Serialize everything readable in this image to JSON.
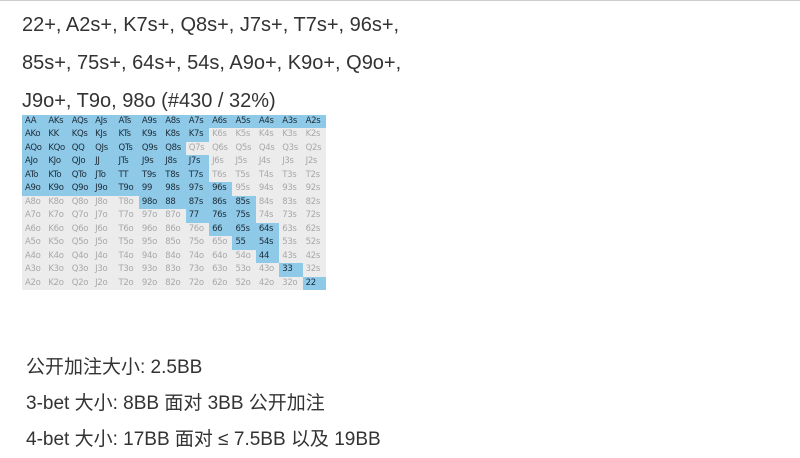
{
  "range_text": {
    "lines": [
      "22+, A2s+, K7s+, Q8s+, J7s+, T7s+, 96s+,",
      "85s+, 75s+, 64s+, 54s, A9o+, K9o+, Q9o+,",
      "J9o+, T9o, 98o (#430 / 32%)"
    ]
  },
  "grid": {
    "ranks": [
      "A",
      "K",
      "Q",
      "J",
      "T",
      "9",
      "8",
      "7",
      "6",
      "5",
      "4",
      "3",
      "2"
    ],
    "selected_color": "#8ec9e8",
    "unselected_color": "#ececec",
    "selected": [
      "22+",
      "A2s+",
      "K7s+",
      "Q8s+",
      "J7s+",
      "T7s+",
      "96s+",
      "85s+",
      "75s+",
      "64s+",
      "54s",
      "A9o+",
      "K9o+",
      "Q9o+",
      "J9o+",
      "T9o",
      "98o"
    ],
    "selected_cells": [
      "AA",
      "AKs",
      "AQs",
      "AJs",
      "ATs",
      "A9s",
      "A8s",
      "A7s",
      "A6s",
      "A5s",
      "A4s",
      "A3s",
      "A2s",
      "AKo",
      "KK",
      "KQs",
      "KJs",
      "KTs",
      "K9s",
      "K8s",
      "K7s",
      "AQo",
      "KQo",
      "QQ",
      "QJs",
      "QTs",
      "Q9s",
      "Q8s",
      "AJo",
      "KJo",
      "QJo",
      "JJ",
      "JTs",
      "J9s",
      "J8s",
      "J7s",
      "ATo",
      "KTo",
      "QTo",
      "JTo",
      "TT",
      "T9s",
      "T8s",
      "T7s",
      "A9o",
      "K9o",
      "Q9o",
      "J9o",
      "T9o",
      "99",
      "98s",
      "97s",
      "96s",
      "98o",
      "88",
      "87s",
      "86s",
      "85s",
      "77",
      "76s",
      "75s",
      "66",
      "65s",
      "64s",
      "55",
      "54s",
      "44",
      "33",
      "22"
    ]
  },
  "sizes": {
    "lines": [
      "公开加注大小:  2.5BB",
      "3-bet 大小: 8BB 面对 3BB 公开加注",
      "4-bet 大小: 17BB 面对 ≤ 7.5BB 以及 19BB"
    ]
  }
}
